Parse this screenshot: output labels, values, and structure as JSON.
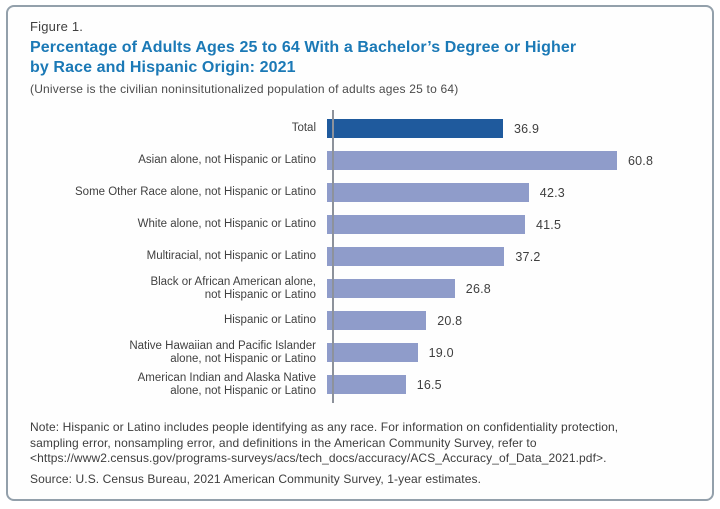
{
  "figure_label": "Figure 1.",
  "title_line1": "Percentage of Adults Ages 25 to 64 With a Bachelor’s Degree or Higher",
  "title_line2": "by Race and Hispanic Origin: 2021",
  "universe_note": "(Universe is the civilian noninsitutionalized population of adults ages 25 to 64)",
  "chart_data": {
    "type": "bar",
    "orientation": "horizontal",
    "title": "Percentage of Adults Ages 25 to 64 With a Bachelor’s Degree or Higher by Race and Hispanic Origin: 2021",
    "xlabel": "",
    "ylabel": "",
    "xlim": [
      0,
      65
    ],
    "grid": false,
    "legend": false,
    "value_labels_shown": true,
    "categories": [
      "Total",
      "Asian alone, not Hispanic or Latino",
      "Some Other Race alone, not Hispanic or Latino",
      "White alone, not Hispanic or Latino",
      "Multiracial, not Hispanic or Latino",
      "Black or African American alone, not Hispanic or Latino",
      "Hispanic or Latino",
      "Native Hawaiian and Pacific Islander alone, not Hispanic or Latino",
      "American Indian and Alaska Native alone, not Hispanic or Latino"
    ],
    "values": [
      36.9,
      60.8,
      42.3,
      41.5,
      37.2,
      26.8,
      20.8,
      19.0,
      16.5
    ],
    "bars": [
      {
        "label": "Total",
        "value": 36.9,
        "value_label": "36.9",
        "color": "#1f5a9d"
      },
      {
        "label": "Asian alone, not Hispanic or Latino",
        "value": 60.8,
        "value_label": "60.8",
        "color": "#8f9cca"
      },
      {
        "label": "Some Other Race alone, not Hispanic or Latino",
        "value": 42.3,
        "value_label": "42.3",
        "color": "#8f9cca"
      },
      {
        "label": "White alone, not Hispanic or Latino",
        "value": 41.5,
        "value_label": "41.5",
        "color": "#8f9cca"
      },
      {
        "label": "Multiracial, not Hispanic or Latino",
        "value": 37.2,
        "value_label": "37.2",
        "color": "#8f9cca"
      },
      {
        "label": "Black or African American alone,\nnot Hispanic or Latino",
        "value": 26.8,
        "value_label": "26.8",
        "color": "#8f9cca"
      },
      {
        "label": "Hispanic or Latino",
        "value": 20.8,
        "value_label": "20.8",
        "color": "#8f9cca"
      },
      {
        "label": "Native Hawaiian and Pacific Islander\nalone, not Hispanic or Latino",
        "value": 19.0,
        "value_label": "19.0",
        "color": "#8f9cca"
      },
      {
        "label": "American Indian and Alaska Native\nalone, not Hispanic or Latino",
        "value": 16.5,
        "value_label": "16.5",
        "color": "#8f9cca"
      }
    ],
    "colors": {
      "total_bar": "#1f5a9d",
      "group_bar": "#8f9cca",
      "axis_line": "#8d929b",
      "title_text": "#1b79b6"
    }
  },
  "note_lines": [
    "Note: Hispanic or Latino includes people identifying as any race. For information on confidentiality protection,",
    "sampling error, nonsampling error, and definitions in the American Community Survey, refer to",
    "<https://www2.census.gov/programs-surveys/acs/tech_docs/accuracy/ACS_Accuracy_of_Data_2021.pdf>."
  ],
  "source_line": "Source: U.S. Census Bureau, 2021 American Community Survey, 1-year estimates."
}
